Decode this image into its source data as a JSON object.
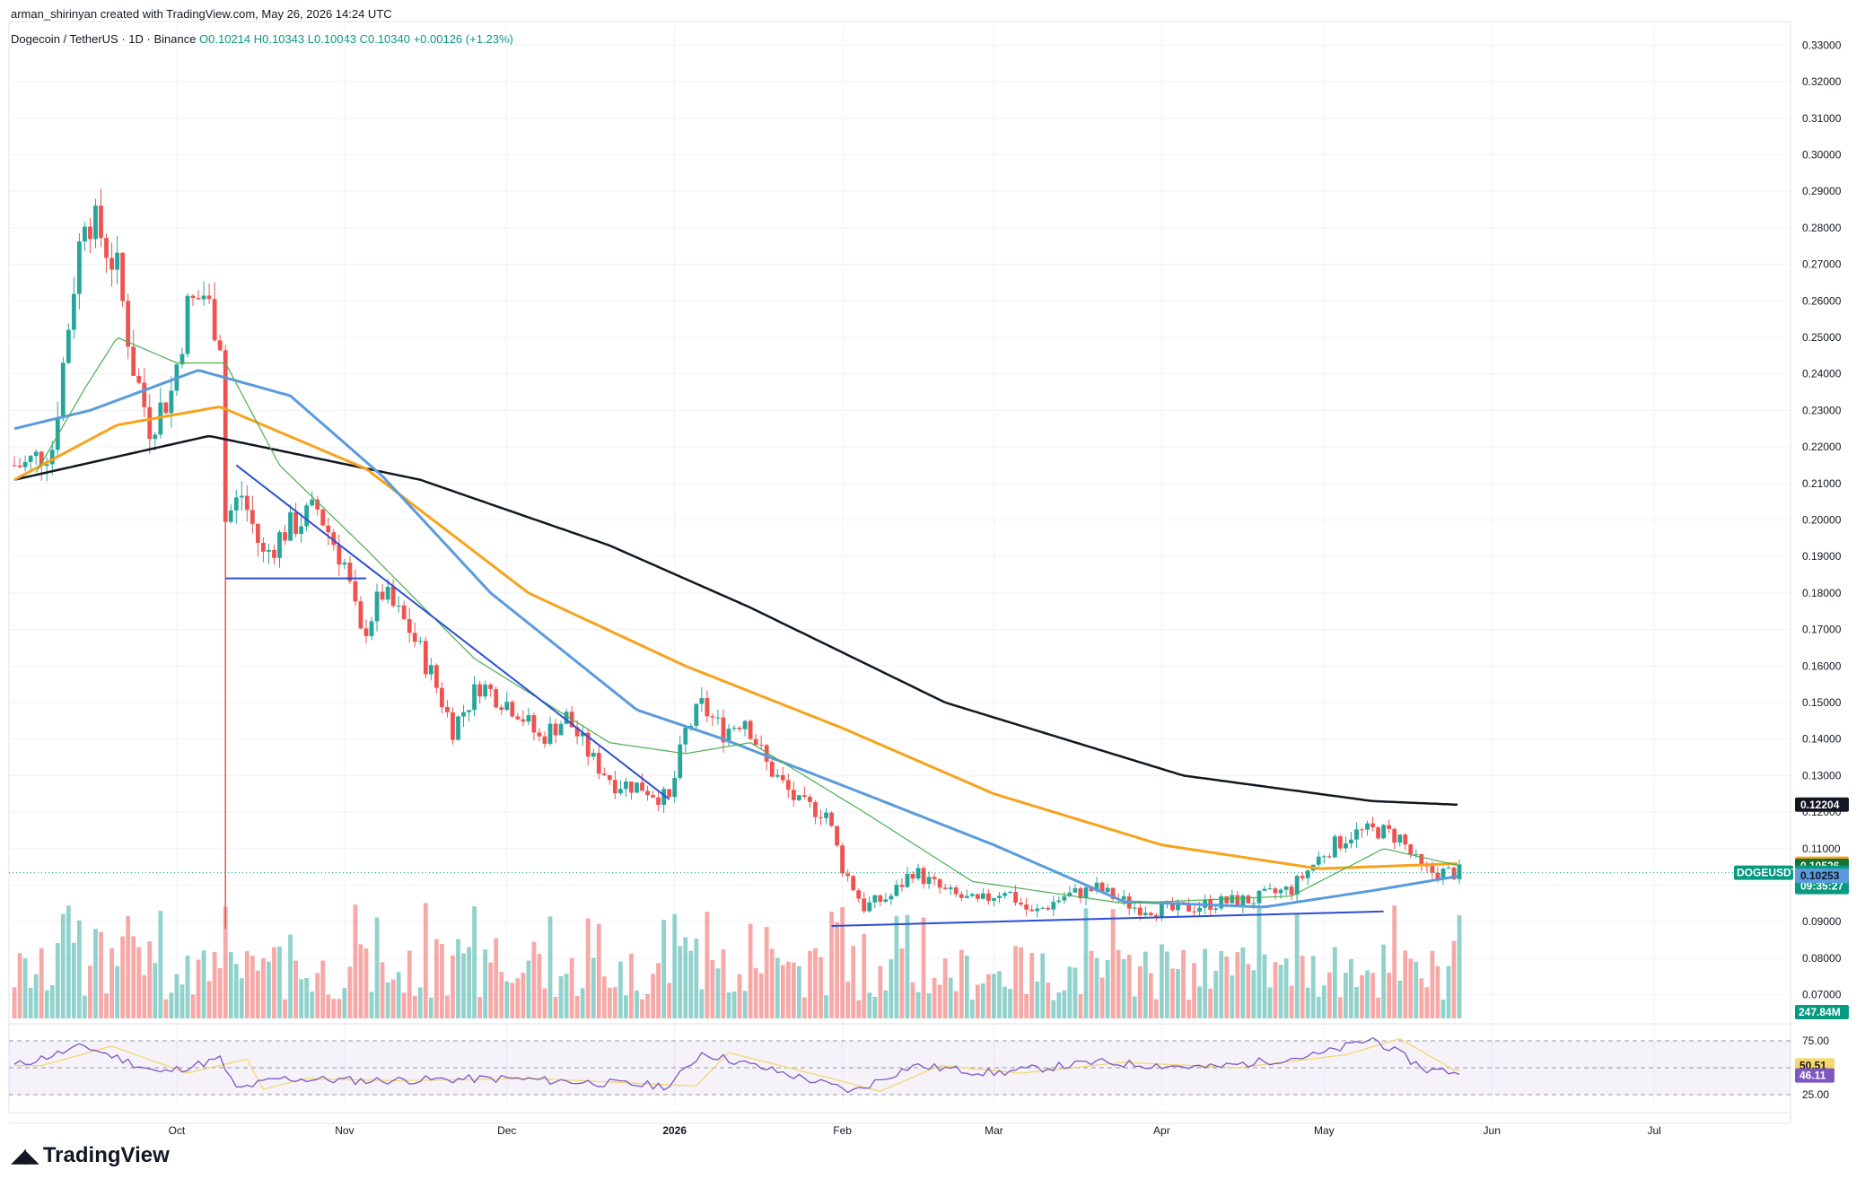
{
  "header": {
    "credit": "arman_shirinyan created with TradingView.com, May 26, 2026 14:24 UTC",
    "symbol": "Dogecoin / TetherUS · 1D · Binance",
    "ohlc": "O0.10214 H0.10343 L0.10043 C0.10340 +0.00126 (+1.23%)"
  },
  "brand": {
    "logo_icon": "tradingview-logo-icon",
    "name": "TradingView"
  },
  "colors": {
    "up": "#26a69a",
    "down": "#ef5350",
    "ma_short": "#4caf50",
    "ma_mid": "#5b9bdc",
    "ma_orange": "#f7a21b",
    "ma_long": "#131722",
    "trendline": "#2c4fd1",
    "rsi": "#7e57c2",
    "rsi_ma": "#f5d76e"
  },
  "chart_data": {
    "type": "candlestick",
    "title": "Dogecoin / TetherUS · 1D · Binance",
    "x_ticks": [
      "Oct",
      "Nov",
      "Dec",
      "2026",
      "Feb",
      "Mar",
      "Apr",
      "May",
      "Jun",
      "Jul"
    ],
    "y_ticks": [
      "0.33000",
      "0.32000",
      "0.31000",
      "0.30000",
      "0.29000",
      "0.28000",
      "0.27000",
      "0.26000",
      "0.25000",
      "0.24000",
      "0.23000",
      "0.22000",
      "0.21000",
      "0.20000",
      "0.19000",
      "0.18000",
      "0.17000",
      "0.16000",
      "0.15000",
      "0.14000",
      "0.13000",
      "0.12000",
      "0.11000",
      "0.10000",
      "0.09000",
      "0.08000",
      "0.07000"
    ],
    "ylim": [
      0.0635,
      0.3355
    ],
    "price_anchors": [
      {
        "date": "2025-09-03",
        "close": 0.215
      },
      {
        "date": "2025-09-08",
        "close": 0.22
      },
      {
        "date": "2025-09-12",
        "close": 0.265
      },
      {
        "date": "2025-09-14",
        "close": 0.285
      },
      {
        "date": "2025-09-17",
        "close": 0.278
      },
      {
        "date": "2025-09-20",
        "close": 0.268
      },
      {
        "date": "2025-09-23",
        "close": 0.242
      },
      {
        "date": "2025-09-26",
        "close": 0.226
      },
      {
        "date": "2025-09-30",
        "close": 0.235
      },
      {
        "date": "2025-10-03",
        "close": 0.258
      },
      {
        "date": "2025-10-06",
        "close": 0.262
      },
      {
        "date": "2025-10-09",
        "close": 0.25
      },
      {
        "date": "2025-10-10",
        "close": 0.2
      },
      {
        "date": "2025-10-13",
        "close": 0.207
      },
      {
        "date": "2025-10-17",
        "close": 0.19
      },
      {
        "date": "2025-10-21",
        "close": 0.197
      },
      {
        "date": "2025-10-27",
        "close": 0.203
      },
      {
        "date": "2025-11-01",
        "close": 0.188
      },
      {
        "date": "2025-11-04",
        "close": 0.168
      },
      {
        "date": "2025-11-08",
        "close": 0.18
      },
      {
        "date": "2025-11-13",
        "close": 0.17
      },
      {
        "date": "2025-11-17",
        "close": 0.158
      },
      {
        "date": "2025-11-21",
        "close": 0.143
      },
      {
        "date": "2025-11-26",
        "close": 0.155
      },
      {
        "date": "2025-12-03",
        "close": 0.148
      },
      {
        "date": "2025-12-07",
        "close": 0.14
      },
      {
        "date": "2025-12-12",
        "close": 0.146
      },
      {
        "date": "2025-12-17",
        "close": 0.134
      },
      {
        "date": "2025-12-21",
        "close": 0.128
      },
      {
        "date": "2025-12-26",
        "close": 0.127
      },
      {
        "date": "2025-12-31",
        "close": 0.123
      },
      {
        "date": "2026-01-03",
        "close": 0.142
      },
      {
        "date": "2026-01-06",
        "close": 0.149
      },
      {
        "date": "2026-01-10",
        "close": 0.142
      },
      {
        "date": "2026-01-14",
        "close": 0.146
      },
      {
        "date": "2026-01-18",
        "close": 0.133
      },
      {
        "date": "2026-01-24",
        "close": 0.122
      },
      {
        "date": "2026-01-29",
        "close": 0.12
      },
      {
        "date": "2026-02-01",
        "close": 0.105
      },
      {
        "date": "2026-02-05",
        "close": 0.094
      },
      {
        "date": "2026-02-10",
        "close": 0.097
      },
      {
        "date": "2026-02-14",
        "close": 0.104
      },
      {
        "date": "2026-02-20",
        "close": 0.098
      },
      {
        "date": "2026-02-26",
        "close": 0.095
      },
      {
        "date": "2026-03-03",
        "close": 0.099
      },
      {
        "date": "2026-03-08",
        "close": 0.092
      },
      {
        "date": "2026-03-14",
        "close": 0.097
      },
      {
        "date": "2026-03-20",
        "close": 0.099
      },
      {
        "date": "2026-03-27",
        "close": 0.094
      },
      {
        "date": "2026-04-03",
        "close": 0.093
      },
      {
        "date": "2026-04-10",
        "close": 0.095
      },
      {
        "date": "2026-04-18",
        "close": 0.096
      },
      {
        "date": "2026-04-25",
        "close": 0.099
      },
      {
        "date": "2026-05-01",
        "close": 0.109
      },
      {
        "date": "2026-05-06",
        "close": 0.114
      },
      {
        "date": "2026-05-11",
        "close": 0.115
      },
      {
        "date": "2026-05-15",
        "close": 0.113
      },
      {
        "date": "2026-05-19",
        "close": 0.104
      },
      {
        "date": "2026-05-22",
        "close": 0.1034
      },
      {
        "date": "2026-05-26",
        "close": 0.1034
      }
    ],
    "moving_averages": [
      {
        "color_key": "ma_long",
        "anchors": [
          {
            "date": "2025-09-01",
            "value": 0.211
          },
          {
            "date": "2025-10-07",
            "value": 0.223
          },
          {
            "date": "2025-11-15",
            "value": 0.211
          },
          {
            "date": "2025-12-20",
            "value": 0.193
          },
          {
            "date": "2026-01-15",
            "value": 0.176
          },
          {
            "date": "2026-02-20",
            "value": 0.15
          },
          {
            "date": "2026-04-05",
            "value": 0.13
          },
          {
            "date": "2026-05-10",
            "value": 0.123
          },
          {
            "date": "2026-05-26",
            "value": 0.122
          }
        ]
      },
      {
        "color_key": "ma_orange",
        "anchors": [
          {
            "date": "2025-09-01",
            "value": 0.211
          },
          {
            "date": "2025-09-20",
            "value": 0.226
          },
          {
            "date": "2025-10-09",
            "value": 0.231
          },
          {
            "date": "2025-11-05",
            "value": 0.214
          },
          {
            "date": "2025-12-05",
            "value": 0.18
          },
          {
            "date": "2026-01-03",
            "value": 0.16
          },
          {
            "date": "2026-02-01",
            "value": 0.143
          },
          {
            "date": "2026-03-01",
            "value": 0.125
          },
          {
            "date": "2026-04-01",
            "value": 0.111
          },
          {
            "date": "2026-04-30",
            "value": 0.1045
          },
          {
            "date": "2026-05-26",
            "value": 0.1059
          }
        ]
      },
      {
        "color_key": "ma_mid",
        "anchors": [
          {
            "date": "2025-09-01",
            "value": 0.225
          },
          {
            "date": "2025-09-15",
            "value": 0.23
          },
          {
            "date": "2025-10-05",
            "value": 0.241
          },
          {
            "date": "2025-10-22",
            "value": 0.234
          },
          {
            "date": "2025-11-08",
            "value": 0.212
          },
          {
            "date": "2025-11-28",
            "value": 0.18
          },
          {
            "date": "2025-12-25",
            "value": 0.148
          },
          {
            "date": "2026-01-10",
            "value": 0.14
          },
          {
            "date": "2026-02-05",
            "value": 0.125
          },
          {
            "date": "2026-03-01",
            "value": 0.111
          },
          {
            "date": "2026-03-25",
            "value": 0.0955
          },
          {
            "date": "2026-04-20",
            "value": 0.094
          },
          {
            "date": "2026-05-10",
            "value": 0.0985
          },
          {
            "date": "2026-05-26",
            "value": 0.1025
          }
        ]
      },
      {
        "color_key": "ma_short",
        "anchors": [
          {
            "date": "2025-09-05",
            "value": 0.213
          },
          {
            "date": "2025-09-14",
            "value": 0.236
          },
          {
            "date": "2025-09-20",
            "value": 0.25
          },
          {
            "date": "2025-10-01",
            "value": 0.243
          },
          {
            "date": "2025-10-10",
            "value": 0.243
          },
          {
            "date": "2025-10-20",
            "value": 0.215
          },
          {
            "date": "2025-11-05",
            "value": 0.192
          },
          {
            "date": "2025-11-25",
            "value": 0.162
          },
          {
            "date": "2025-12-20",
            "value": 0.139
          },
          {
            "date": "2026-01-03",
            "value": 0.136
          },
          {
            "date": "2026-01-15",
            "value": 0.139
          },
          {
            "date": "2026-02-05",
            "value": 0.12
          },
          {
            "date": "2026-02-25",
            "value": 0.101
          },
          {
            "date": "2026-03-25",
            "value": 0.095
          },
          {
            "date": "2026-04-25",
            "value": 0.097
          },
          {
            "date": "2026-05-12",
            "value": 0.11
          },
          {
            "date": "2026-05-26",
            "value": 0.1053
          }
        ]
      }
    ],
    "trendlines": [
      {
        "from": {
          "date": "2025-10-12",
          "value": 0.215
        },
        "to": {
          "date": "2025-12-31",
          "value": 0.1235
        }
      },
      {
        "from": {
          "date": "2025-10-10",
          "value": 0.184
        },
        "to": {
          "date": "2025-11-05",
          "value": 0.184
        }
      },
      {
        "from": {
          "date": "2026-01-30",
          "value": 0.0888
        },
        "to": {
          "date": "2026-05-12",
          "value": 0.0928
        }
      }
    ],
    "price_tags": [
      {
        "label": "",
        "value": "0.12204",
        "bg": "#131722",
        "fg": "#ffffff"
      },
      {
        "label": "",
        "value": "0.10586",
        "bg": "#f7a21b",
        "fg": "#131722"
      },
      {
        "label": "",
        "value": "0.10526",
        "bg": "#137333",
        "fg": "#ffffff"
      },
      {
        "label": "DOGEUSDT",
        "value": "0.10340",
        "sub": "09:35:27",
        "bg": "#089981",
        "fg": "#ffffff"
      },
      {
        "label": "",
        "value": "0.10253",
        "bg": "#5b9bdc",
        "fg": "#131722"
      }
    ],
    "volume_tag": "247.84M",
    "rsi": {
      "ticks": [
        "75.00",
        "25.00"
      ],
      "value_tags": [
        {
          "value": "50.51",
          "bg": "#f5d76e",
          "fg": "#131722"
        },
        {
          "value": "46.11",
          "bg": "#7e57c2",
          "fg": "#ffffff"
        }
      ],
      "anchors": [
        {
          "date": "2025-09-01",
          "value": 52
        },
        {
          "date": "2025-09-14",
          "value": 70
        },
        {
          "date": "2025-09-28",
          "value": 45
        },
        {
          "date": "2025-10-09",
          "value": 58
        },
        {
          "date": "2025-10-12",
          "value": 30
        },
        {
          "date": "2025-10-20",
          "value": 40
        },
        {
          "date": "2025-11-05",
          "value": 38
        },
        {
          "date": "2025-12-01",
          "value": 40
        },
        {
          "date": "2025-12-31",
          "value": 33
        },
        {
          "date": "2026-01-06",
          "value": 64
        },
        {
          "date": "2026-01-25",
          "value": 40
        },
        {
          "date": "2026-02-03",
          "value": 28
        },
        {
          "date": "2026-02-14",
          "value": 52
        },
        {
          "date": "2026-03-01",
          "value": 45
        },
        {
          "date": "2026-03-20",
          "value": 55
        },
        {
          "date": "2026-04-10",
          "value": 50
        },
        {
          "date": "2026-04-30",
          "value": 62
        },
        {
          "date": "2026-05-10",
          "value": 77
        },
        {
          "date": "2026-05-20",
          "value": 48
        },
        {
          "date": "2026-05-26",
          "value": 46
        }
      ]
    }
  }
}
